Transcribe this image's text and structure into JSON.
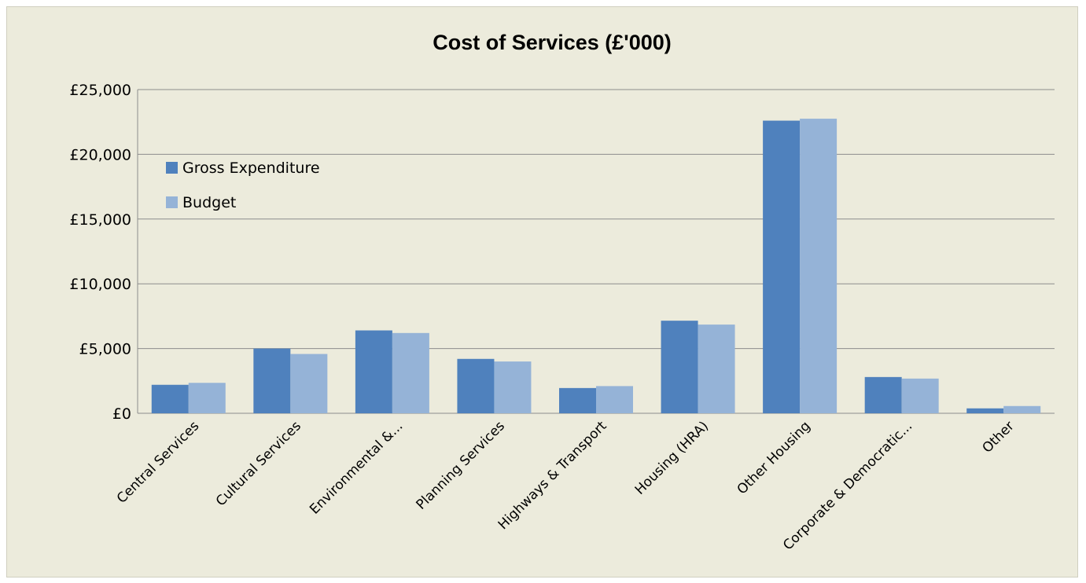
{
  "chart_data": {
    "type": "bar",
    "title": "Cost of Services (£'000)",
    "xlabel": "",
    "ylabel": "",
    "ylim": [
      0,
      25000
    ],
    "yticks": [
      0,
      5000,
      10000,
      15000,
      20000,
      25000
    ],
    "ytick_labels": [
      "£0",
      "£5,000",
      "£10,000",
      "£15,000",
      "£20,000",
      "£25,000"
    ],
    "grid": true,
    "legend_position": "upper-left",
    "categories": [
      "Central Services",
      "Cultural Services",
      "Environmental &...",
      "Planning Services",
      "Highways & Transport",
      "Housing (HRA)",
      "Other Housing",
      "Corporate & Democratic...",
      "Other"
    ],
    "series": [
      {
        "name": "Gross Expenditure",
        "color": "#4f81bd",
        "values": [
          2200,
          5000,
          6400,
          4200,
          1950,
          7150,
          22600,
          2800,
          380
        ]
      },
      {
        "name": "Budget",
        "color": "#95b3d7",
        "values": [
          2350,
          4580,
          6200,
          4000,
          2100,
          6850,
          22750,
          2680,
          560
        ]
      }
    ]
  }
}
